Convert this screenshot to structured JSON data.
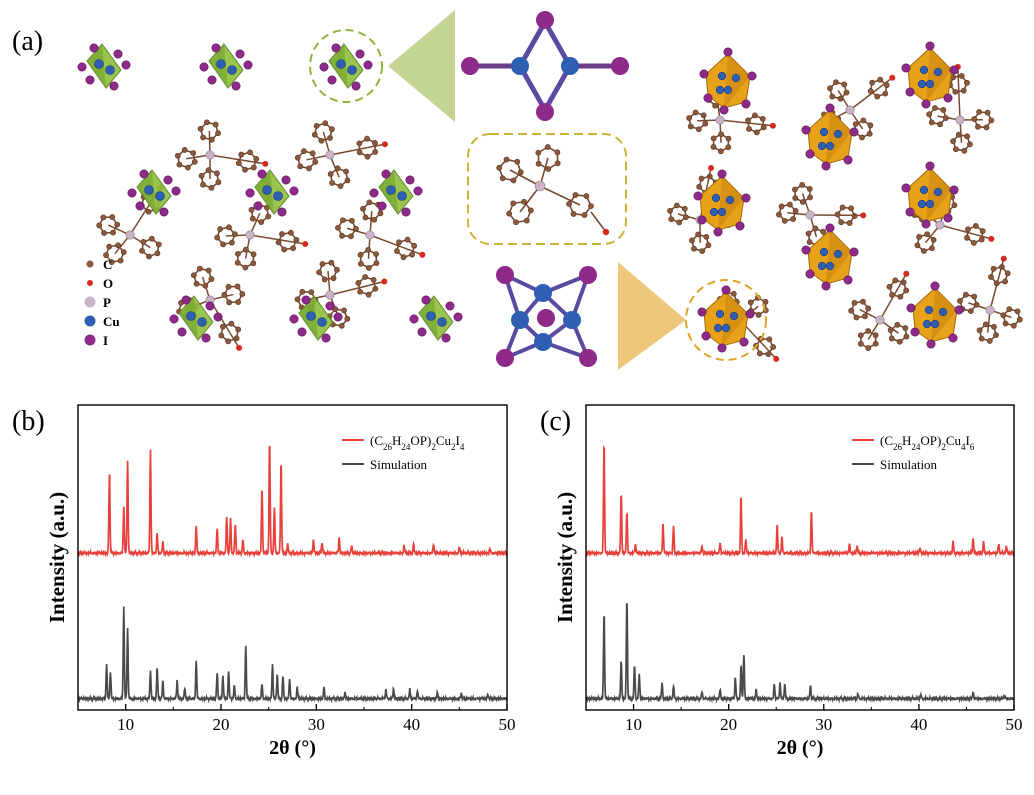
{
  "panels": {
    "a": {
      "label": "(a)",
      "legend": [
        {
          "name": "C",
          "color": "#8b5a3c"
        },
        {
          "name": "O",
          "color": "#d62a1e"
        },
        {
          "name": "P",
          "color": "#c9b3c4"
        },
        {
          "name": "Cu",
          "color": "#2f5fb3"
        },
        {
          "name": "I",
          "color": "#8e2a8a"
        }
      ],
      "colors": {
        "green_polyhedron": "#8cbf3a",
        "orange_polyhedron": "#e8a21a",
        "bond_brown": "#7a4a30",
        "callout_green": "#8fb33a",
        "callout_orange": "#e3a125"
      }
    }
  },
  "chart_data": [
    {
      "panel": "b",
      "type": "line",
      "panel_label": "(b)",
      "xlabel": "2θ (°)",
      "ylabel": "Intensity (a.u.)",
      "xlim": [
        5,
        50
      ],
      "xticks": [
        10,
        20,
        30,
        40,
        50
      ],
      "legend": [
        "(C26H24OP)2Cu2I4",
        "Simulation"
      ],
      "series": [
        {
          "name": "(C26H24OP)2Cu2I4",
          "color": "#e8403a",
          "offset": 1.0,
          "peaks": [
            [
              8.3,
              0.74
            ],
            [
              9.8,
              0.42
            ],
            [
              10.2,
              0.82
            ],
            [
              12.6,
              0.92
            ],
            [
              13.3,
              0.18
            ],
            [
              13.9,
              0.1
            ],
            [
              17.4,
              0.25
            ],
            [
              19.6,
              0.22
            ],
            [
              20.6,
              0.33
            ],
            [
              21.0,
              0.31
            ],
            [
              21.5,
              0.26
            ],
            [
              22.3,
              0.12
            ],
            [
              24.3,
              0.58
            ],
            [
              25.1,
              1.0
            ],
            [
              25.6,
              0.4
            ],
            [
              26.3,
              0.82
            ],
            [
              27.0,
              0.08
            ],
            [
              29.7,
              0.12
            ],
            [
              30.6,
              0.1
            ],
            [
              32.4,
              0.14
            ],
            [
              33.7,
              0.06
            ],
            [
              39.2,
              0.07
            ],
            [
              40.2,
              0.08
            ],
            [
              42.3,
              0.08
            ],
            [
              45.0,
              0.05
            ],
            [
              48.2,
              0.04
            ]
          ]
        },
        {
          "name": "Simulation",
          "color": "#4a4a4a",
          "offset": 0.0,
          "peaks": [
            [
              8.0,
              0.3
            ],
            [
              8.4,
              0.24
            ],
            [
              9.8,
              0.82
            ],
            [
              10.2,
              0.62
            ],
            [
              12.6,
              0.25
            ],
            [
              13.3,
              0.28
            ],
            [
              13.9,
              0.16
            ],
            [
              15.4,
              0.16
            ],
            [
              16.2,
              0.09
            ],
            [
              17.4,
              0.34
            ],
            [
              19.6,
              0.23
            ],
            [
              20.2,
              0.2
            ],
            [
              20.8,
              0.24
            ],
            [
              21.4,
              0.12
            ],
            [
              22.6,
              0.47
            ],
            [
              24.3,
              0.13
            ],
            [
              25.4,
              0.3
            ],
            [
              25.9,
              0.22
            ],
            [
              26.5,
              0.2
            ],
            [
              27.2,
              0.18
            ],
            [
              28.0,
              0.1
            ],
            [
              30.8,
              0.1
            ],
            [
              33.0,
              0.06
            ],
            [
              37.3,
              0.08
            ],
            [
              38.1,
              0.09
            ],
            [
              39.8,
              0.08
            ],
            [
              40.6,
              0.07
            ],
            [
              42.7,
              0.05
            ],
            [
              45.2,
              0.05
            ],
            [
              48.0,
              0.04
            ]
          ]
        }
      ]
    },
    {
      "panel": "c",
      "type": "line",
      "panel_label": "(c)",
      "xlabel": "2θ (°)",
      "ylabel": "Intensity (a.u.)",
      "xlim": [
        5,
        50
      ],
      "xticks": [
        10,
        20,
        30,
        40,
        50
      ],
      "legend": [
        "(C26H24OP)2Cu4I6",
        "Simulation"
      ],
      "series": [
        {
          "name": "(C26H24OP)2Cu4I6",
          "color": "#e8403a",
          "offset": 1.0,
          "peaks": [
            [
              6.9,
              1.0
            ],
            [
              8.7,
              0.53
            ],
            [
              9.3,
              0.37
            ],
            [
              10.2,
              0.08
            ],
            [
              13.1,
              0.27
            ],
            [
              14.2,
              0.24
            ],
            [
              17.2,
              0.06
            ],
            [
              19.1,
              0.09
            ],
            [
              21.3,
              0.52
            ],
            [
              21.8,
              0.12
            ],
            [
              25.1,
              0.25
            ],
            [
              25.6,
              0.14
            ],
            [
              28.7,
              0.38
            ],
            [
              32.7,
              0.08
            ],
            [
              33.5,
              0.07
            ],
            [
              40.1,
              0.05
            ],
            [
              43.6,
              0.1
            ],
            [
              45.7,
              0.14
            ],
            [
              46.8,
              0.1
            ],
            [
              48.4,
              0.08
            ],
            [
              49.2,
              0.06
            ]
          ]
        },
        {
          "name": "Simulation",
          "color": "#4a4a4a",
          "offset": 0.0,
          "peaks": [
            [
              6.9,
              0.78
            ],
            [
              8.7,
              0.34
            ],
            [
              9.3,
              0.9
            ],
            [
              10.1,
              0.3
            ],
            [
              10.6,
              0.22
            ],
            [
              13.0,
              0.14
            ],
            [
              14.2,
              0.11
            ],
            [
              17.2,
              0.06
            ],
            [
              19.1,
              0.08
            ],
            [
              20.7,
              0.19
            ],
            [
              21.3,
              0.3
            ],
            [
              21.6,
              0.4
            ],
            [
              22.9,
              0.08
            ],
            [
              24.8,
              0.13
            ],
            [
              25.4,
              0.14
            ],
            [
              25.9,
              0.13
            ],
            [
              28.6,
              0.12
            ],
            [
              33.6,
              0.04
            ],
            [
              40.2,
              0.03
            ],
            [
              45.7,
              0.06
            ],
            [
              49.0,
              0.03
            ]
          ]
        }
      ]
    }
  ]
}
